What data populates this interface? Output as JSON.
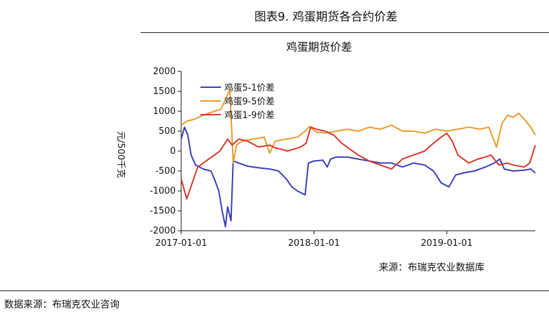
{
  "figure_title": "图表9.    鸡蛋期货各合约价差",
  "footnote": "数据来源：布瑞克农业咨询",
  "chart_data": {
    "type": "line",
    "title": "鸡蛋期货价差",
    "ylabel": "元/500千克",
    "source": "来源：布瑞克农业数据库",
    "ylim": [
      -2000,
      2000
    ],
    "yticks": [
      "2000",
      "1500",
      "1000",
      "500",
      "0",
      "-500",
      "-1000",
      "-1500",
      "-2000"
    ],
    "xticks": [
      {
        "t": 0,
        "label": "2017-01-01"
      },
      {
        "t": 12,
        "label": "2018-01-01"
      },
      {
        "t": 24,
        "label": "2019-01-01"
      }
    ],
    "xrange": [
      0,
      32
    ],
    "colors": {
      "s1": "#3a3db8",
      "s2": "#e89a2a",
      "s3": "#d9352a"
    },
    "series": [
      {
        "name": "鸡蛋5-1价差",
        "color": "#3a3db8",
        "points": [
          [
            0,
            300
          ],
          [
            0.3,
            600
          ],
          [
            0.6,
            400
          ],
          [
            0.9,
            -100
          ],
          [
            1.3,
            -350
          ],
          [
            2,
            -450
          ],
          [
            2.7,
            -500
          ],
          [
            3,
            -700
          ],
          [
            3.4,
            -1000
          ],
          [
            3.7,
            -1500
          ],
          [
            4,
            -1900
          ],
          [
            4.2,
            -1400
          ],
          [
            4.5,
            -1750
          ],
          [
            4.7,
            -250
          ],
          [
            5.2,
            -300
          ],
          [
            6,
            -380
          ],
          [
            7,
            -420
          ],
          [
            8,
            -450
          ],
          [
            8.8,
            -500
          ],
          [
            9.5,
            -700
          ],
          [
            10,
            -900
          ],
          [
            10.5,
            -1000
          ],
          [
            11.2,
            -1100
          ],
          [
            11.5,
            -300
          ],
          [
            12,
            -250
          ],
          [
            12.8,
            -230
          ],
          [
            13.2,
            -400
          ],
          [
            13.5,
            -200
          ],
          [
            14,
            -150
          ],
          [
            15,
            -150
          ],
          [
            16,
            -200
          ],
          [
            17,
            -250
          ],
          [
            18,
            -300
          ],
          [
            19,
            -300
          ],
          [
            20,
            -400
          ],
          [
            21,
            -300
          ],
          [
            22,
            -350
          ],
          [
            22.8,
            -500
          ],
          [
            23.5,
            -800
          ],
          [
            24.2,
            -900
          ],
          [
            24.8,
            -600
          ],
          [
            25.5,
            -550
          ],
          [
            26.5,
            -500
          ],
          [
            27.5,
            -400
          ],
          [
            28.3,
            -300
          ],
          [
            28.8,
            -200
          ],
          [
            29.2,
            -450
          ],
          [
            30,
            -500
          ],
          [
            31,
            -480
          ],
          [
            31.6,
            -450
          ],
          [
            32,
            -550
          ]
        ]
      },
      {
        "name": "鸡蛋9-5价差",
        "color": "#e89a2a",
        "points": [
          [
            0,
            650
          ],
          [
            0.5,
            750
          ],
          [
            1.2,
            800
          ],
          [
            2,
            900
          ],
          [
            3,
            1000
          ],
          [
            3.6,
            1050
          ],
          [
            4,
            1300
          ],
          [
            4.4,
            1550
          ],
          [
            4.7,
            -300
          ],
          [
            5,
            150
          ],
          [
            5.5,
            250
          ],
          [
            6.5,
            300
          ],
          [
            7.5,
            350
          ],
          [
            8,
            -50
          ],
          [
            8.5,
            250
          ],
          [
            9.5,
            300
          ],
          [
            10.5,
            350
          ],
          [
            11.2,
            500
          ],
          [
            11.6,
            620
          ],
          [
            12.2,
            480
          ],
          [
            13,
            450
          ],
          [
            14,
            500
          ],
          [
            15,
            550
          ],
          [
            16,
            500
          ],
          [
            17,
            600
          ],
          [
            18,
            550
          ],
          [
            19,
            650
          ],
          [
            20,
            500
          ],
          [
            21,
            500
          ],
          [
            22,
            450
          ],
          [
            23,
            550
          ],
          [
            24,
            500
          ],
          [
            25,
            550
          ],
          [
            26,
            600
          ],
          [
            27,
            550
          ],
          [
            27.8,
            600
          ],
          [
            28.5,
            100
          ],
          [
            29,
            700
          ],
          [
            29.5,
            900
          ],
          [
            30,
            850
          ],
          [
            30.5,
            950
          ],
          [
            31,
            800
          ],
          [
            31.6,
            600
          ],
          [
            32,
            400
          ]
        ]
      },
      {
        "name": "鸡蛋1-9价差",
        "color": "#d9352a",
        "points": [
          [
            0,
            -700
          ],
          [
            0.5,
            -1200
          ],
          [
            1,
            -800
          ],
          [
            1.5,
            -400
          ],
          [
            2.5,
            -200
          ],
          [
            3.5,
            0
          ],
          [
            4.2,
            300
          ],
          [
            4.6,
            150
          ],
          [
            5.2,
            300
          ],
          [
            6,
            250
          ],
          [
            7,
            100
          ],
          [
            8,
            150
          ],
          [
            8.5,
            80
          ],
          [
            9,
            50
          ],
          [
            9.6,
            0
          ],
          [
            10.2,
            50
          ],
          [
            10.8,
            100
          ],
          [
            11.3,
            200
          ],
          [
            11.7,
            600
          ],
          [
            12.2,
            550
          ],
          [
            13,
            500
          ],
          [
            13.8,
            400
          ],
          [
            14.5,
            200
          ],
          [
            15,
            100
          ],
          [
            16,
            -100
          ],
          [
            17,
            -250
          ],
          [
            18,
            -350
          ],
          [
            19,
            -450
          ],
          [
            20,
            -200
          ],
          [
            21,
            -100
          ],
          [
            22,
            0
          ],
          [
            22.8,
            200
          ],
          [
            23.5,
            350
          ],
          [
            24,
            450
          ],
          [
            24.5,
            250
          ],
          [
            25,
            -100
          ],
          [
            26,
            -300
          ],
          [
            26.8,
            -200
          ],
          [
            27.5,
            -150
          ],
          [
            28,
            -100
          ],
          [
            28.7,
            -350
          ],
          [
            29.5,
            -300
          ],
          [
            30,
            -350
          ],
          [
            31,
            -400
          ],
          [
            31.5,
            -300
          ],
          [
            32,
            150
          ]
        ]
      }
    ]
  }
}
